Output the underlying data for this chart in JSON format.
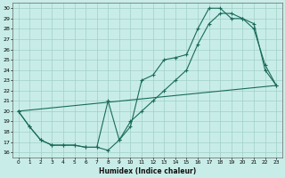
{
  "xlabel": "Humidex (Indice chaleur)",
  "bg_color": "#c8ede8",
  "grid_color": "#a0d0c8",
  "line_color": "#1a6b5a",
  "xlim": [
    -0.5,
    23.5
  ],
  "ylim": [
    15.5,
    30.5
  ],
  "xticks": [
    0,
    1,
    2,
    3,
    4,
    5,
    6,
    7,
    8,
    9,
    10,
    11,
    12,
    13,
    14,
    15,
    16,
    17,
    18,
    19,
    20,
    21,
    22,
    23
  ],
  "yticks": [
    16,
    17,
    18,
    19,
    20,
    21,
    22,
    23,
    24,
    25,
    26,
    27,
    28,
    29,
    30
  ],
  "line1_x": [
    0,
    1,
    2,
    3,
    4,
    5,
    6,
    7,
    8,
    9,
    10,
    11,
    12,
    13,
    14,
    15,
    16,
    17,
    18,
    19,
    20,
    21,
    22,
    23
  ],
  "line1_y": [
    20,
    18.5,
    17.2,
    16.7,
    16.7,
    16.7,
    16.5,
    16.5,
    21,
    17.2,
    18.5,
    23,
    23.5,
    25,
    25.2,
    25.5,
    28,
    30,
    30,
    29,
    29,
    28.5,
    24,
    22.5
  ],
  "line2_x": [
    0,
    1,
    2,
    3,
    4,
    5,
    6,
    7,
    8,
    9,
    10,
    11,
    12,
    13,
    14,
    15,
    16,
    17,
    18,
    19,
    20,
    21,
    22,
    23
  ],
  "line2_y": [
    20,
    18.5,
    17.2,
    16.7,
    16.7,
    16.7,
    16.5,
    16.5,
    16.2,
    17.2,
    19,
    20,
    21,
    22,
    23,
    24,
    26.5,
    28.5,
    29.5,
    29.5,
    29,
    28,
    24.5,
    22.5
  ],
  "line3_x": [
    0,
    23
  ],
  "line3_y": [
    20,
    22.5
  ]
}
